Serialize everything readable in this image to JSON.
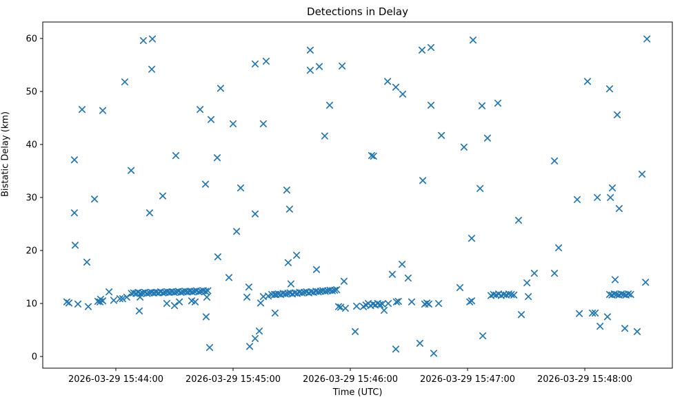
{
  "chart_data": {
    "type": "scatter",
    "title": "Detections in Delay",
    "xlabel": "Time (UTC)",
    "ylabel": "Bistatic Delay (km)",
    "marker": "x",
    "marker_color": "#1f77b4",
    "grid": false,
    "x_unit": "seconds after 2026-03-29 15:43:00 UTC",
    "xlim": [
      22.6,
      344.8
    ],
    "ylim": [
      -2.2,
      63.1
    ],
    "x_ticks": [
      60,
      120,
      180,
      240,
      300
    ],
    "x_tick_labels": [
      "2026-03-29 15:44:00",
      "2026-03-29 15:45:00",
      "2026-03-29 15:46:00",
      "2026-03-29 15:47:00",
      "2026-03-29 15:48:00"
    ],
    "y_ticks": [
      0,
      10,
      20,
      30,
      40,
      50,
      60
    ],
    "y_tick_labels": [
      "0",
      "10",
      "20",
      "30",
      "40",
      "50",
      "60"
    ],
    "points": [
      [
        34.9,
        10.3
      ],
      [
        36.0,
        10.1
      ],
      [
        38.8,
        37.1
      ],
      [
        38.8,
        27.1
      ],
      [
        39.2,
        21.0
      ],
      [
        40.6,
        9.9
      ],
      [
        42.7,
        46.6
      ],
      [
        45.2,
        17.8
      ],
      [
        45.9,
        9.4
      ],
      [
        49.1,
        29.7
      ],
      [
        50.8,
        10.4
      ],
      [
        51.9,
        10.3
      ],
      [
        52.2,
        10.8
      ],
      [
        53.3,
        10.5
      ],
      [
        53.3,
        46.4
      ],
      [
        56.5,
        12.2
      ],
      [
        58.9,
        10.6
      ],
      [
        62.1,
        10.9
      ],
      [
        63.5,
        10.9
      ],
      [
        64.6,
        51.8
      ],
      [
        65.6,
        11.2
      ],
      [
        67.8,
        35.1
      ],
      [
        68.0,
        11.9
      ],
      [
        69.1,
        12.0
      ],
      [
        70.3,
        11.9
      ],
      [
        71.4,
        12.1
      ],
      [
        72.6,
        11.9
      ],
      [
        73.7,
        12.0
      ],
      [
        74.9,
        12.1
      ],
      [
        76.0,
        11.9
      ],
      [
        77.2,
        12.0
      ],
      [
        78.3,
        12.1
      ],
      [
        79.5,
        12.0
      ],
      [
        80.6,
        12.1
      ],
      [
        81.8,
        12.0
      ],
      [
        82.9,
        12.2
      ],
      [
        84.1,
        12.0
      ],
      [
        85.2,
        12.1
      ],
      [
        86.4,
        12.2
      ],
      [
        87.5,
        12.1
      ],
      [
        88.7,
        12.2
      ],
      [
        89.8,
        12.1
      ],
      [
        91.0,
        12.2
      ],
      [
        92.1,
        12.3
      ],
      [
        93.3,
        12.1
      ],
      [
        94.4,
        12.2
      ],
      [
        95.6,
        12.3
      ],
      [
        96.7,
        12.2
      ],
      [
        97.9,
        12.3
      ],
      [
        99.0,
        12.2
      ],
      [
        100.2,
        12.3
      ],
      [
        101.3,
        12.4
      ],
      [
        102.5,
        12.2
      ],
      [
        103.6,
        12.3
      ],
      [
        104.8,
        12.4
      ],
      [
        105.9,
        12.3
      ],
      [
        107.1,
        12.4
      ],
      [
        72.0,
        8.6
      ],
      [
        72.4,
        11.2
      ],
      [
        74.1,
        59.6
      ],
      [
        77.3,
        27.1
      ],
      [
        78.4,
        54.2
      ],
      [
        78.7,
        59.9
      ],
      [
        84.0,
        30.3
      ],
      [
        86.1,
        10.0
      ],
      [
        90.0,
        9.6
      ],
      [
        90.7,
        37.9
      ],
      [
        92.5,
        10.3
      ],
      [
        98.8,
        10.5
      ],
      [
        100.6,
        10.3
      ],
      [
        103.1,
        46.6
      ],
      [
        105.9,
        32.5
      ],
      [
        106.2,
        7.5
      ],
      [
        106.6,
        11.2
      ],
      [
        108.0,
        1.7
      ],
      [
        108.7,
        44.7
      ],
      [
        111.9,
        37.5
      ],
      [
        112.2,
        18.8
      ],
      [
        113.6,
        50.6
      ],
      [
        117.9,
        14.9
      ],
      [
        120.0,
        43.9
      ],
      [
        121.8,
        23.6
      ],
      [
        123.9,
        31.8
      ],
      [
        127.1,
        11.2
      ],
      [
        128.1,
        13.1
      ],
      [
        128.5,
        1.9
      ],
      [
        131.3,
        3.4
      ],
      [
        131.3,
        26.9
      ],
      [
        131.3,
        55.2
      ],
      [
        133.4,
        4.8
      ],
      [
        134.1,
        10.1
      ],
      [
        135.5,
        11.3
      ],
      [
        135.5,
        43.9
      ],
      [
        136.9,
        55.7
      ],
      [
        138.0,
        11.4
      ],
      [
        139.8,
        11.7
      ],
      [
        141.2,
        11.7
      ],
      [
        141.5,
        8.2
      ],
      [
        142.0,
        11.7
      ],
      [
        143.2,
        11.8
      ],
      [
        144.4,
        11.7
      ],
      [
        145.6,
        11.9
      ],
      [
        146.8,
        11.8
      ],
      [
        148.0,
        11.9
      ],
      [
        149.2,
        12.0
      ],
      [
        150.4,
        11.8
      ],
      [
        151.6,
        12.0
      ],
      [
        152.8,
        11.9
      ],
      [
        154.0,
        12.1
      ],
      [
        155.2,
        12.0
      ],
      [
        156.4,
        12.1
      ],
      [
        157.6,
        12.2
      ],
      [
        158.8,
        12.0
      ],
      [
        160.0,
        12.2
      ],
      [
        161.2,
        12.1
      ],
      [
        162.4,
        12.3
      ],
      [
        163.6,
        12.2
      ],
      [
        164.8,
        12.3
      ],
      [
        166.0,
        12.4
      ],
      [
        167.2,
        12.3
      ],
      [
        168.4,
        12.4
      ],
      [
        169.6,
        12.5
      ],
      [
        170.8,
        12.4
      ],
      [
        172.0,
        12.5
      ],
      [
        173.0,
        12.6
      ],
      [
        147.5,
        31.4
      ],
      [
        148.2,
        17.7
      ],
      [
        148.9,
        27.8
      ],
      [
        149.6,
        13.7
      ],
      [
        152.5,
        19.1
      ],
      [
        159.5,
        57.8
      ],
      [
        159.5,
        54.0
      ],
      [
        162.7,
        16.4
      ],
      [
        164.1,
        54.7
      ],
      [
        166.9,
        41.6
      ],
      [
        169.4,
        47.4
      ],
      [
        174.0,
        9.4
      ],
      [
        175.1,
        9.3
      ],
      [
        175.8,
        54.8
      ],
      [
        176.8,
        14.2
      ],
      [
        177.5,
        9.1
      ],
      [
        182.5,
        4.7
      ],
      [
        183.2,
        9.5
      ],
      [
        186.7,
        9.4
      ],
      [
        188.0,
        9.7
      ],
      [
        189.2,
        10.0
      ],
      [
        190.4,
        9.6
      ],
      [
        191.6,
        9.9
      ],
      [
        192.8,
        9.7
      ],
      [
        194.0,
        10.0
      ],
      [
        195.2,
        9.8
      ],
      [
        196.4,
        9.9
      ],
      [
        190.9,
        37.9
      ],
      [
        191.9,
        37.8
      ],
      [
        197.3,
        8.7
      ],
      [
        199.1,
        51.9
      ],
      [
        199.4,
        10.0
      ],
      [
        201.5,
        15.5
      ],
      [
        203.3,
        50.8
      ],
      [
        203.3,
        1.4
      ],
      [
        203.6,
        10.3
      ],
      [
        204.6,
        10.4
      ],
      [
        206.5,
        17.4
      ],
      [
        206.8,
        49.5
      ],
      [
        209.6,
        14.8
      ],
      [
        211.4,
        10.3
      ],
      [
        215.6,
        2.5
      ],
      [
        216.7,
        57.8
      ],
      [
        217.1,
        33.2
      ],
      [
        218.1,
        9.9
      ],
      [
        219.2,
        10.1
      ],
      [
        220.2,
        9.9
      ],
      [
        221.3,
        58.3
      ],
      [
        221.3,
        47.4
      ],
      [
        222.7,
        0.6
      ],
      [
        225.2,
        10.0
      ],
      [
        226.6,
        41.7
      ],
      [
        236.1,
        13.0
      ],
      [
        238.2,
        39.5
      ],
      [
        241.1,
        10.3
      ],
      [
        242.1,
        10.5
      ],
      [
        242.1,
        22.3
      ],
      [
        242.8,
        59.7
      ],
      [
        246.4,
        31.7
      ],
      [
        247.4,
        47.3
      ],
      [
        247.8,
        3.9
      ],
      [
        250.2,
        41.2
      ],
      [
        252.0,
        11.5
      ],
      [
        253.3,
        11.7
      ],
      [
        254.6,
        11.6
      ],
      [
        255.9,
        11.8
      ],
      [
        257.2,
        11.5
      ],
      [
        258.5,
        11.7
      ],
      [
        259.8,
        11.6
      ],
      [
        261.1,
        11.8
      ],
      [
        262.4,
        11.7
      ],
      [
        263.7,
        11.6
      ],
      [
        255.5,
        47.8
      ],
      [
        266.1,
        25.7
      ],
      [
        267.5,
        7.9
      ],
      [
        270.4,
        13.9
      ],
      [
        271.1,
        11.3
      ],
      [
        274.2,
        15.7
      ],
      [
        284.5,
        36.9
      ],
      [
        284.5,
        15.7
      ],
      [
        286.6,
        20.5
      ],
      [
        296.1,
        29.6
      ],
      [
        297.2,
        8.1
      ],
      [
        301.4,
        51.9
      ],
      [
        303.9,
        8.2
      ],
      [
        305.3,
        8.2
      ],
      [
        306.4,
        30.0
      ],
      [
        307.8,
        5.7
      ],
      [
        311.6,
        7.5
      ],
      [
        312.7,
        11.7
      ],
      [
        313.9,
        11.6
      ],
      [
        315.1,
        11.8
      ],
      [
        316.3,
        11.7
      ],
      [
        317.5,
        11.6
      ],
      [
        318.7,
        11.8
      ],
      [
        319.9,
        11.7
      ],
      [
        321.1,
        11.6
      ],
      [
        322.3,
        11.8
      ],
      [
        323.5,
        11.7
      ],
      [
        312.7,
        50.5
      ],
      [
        313.1,
        30.0
      ],
      [
        314.1,
        31.8
      ],
      [
        315.5,
        14.5
      ],
      [
        316.6,
        45.6
      ],
      [
        317.6,
        27.9
      ],
      [
        320.5,
        5.3
      ],
      [
        326.8,
        4.7
      ],
      [
        329.3,
        34.4
      ],
      [
        331.1,
        14.0
      ],
      [
        331.8,
        59.9
      ]
    ]
  }
}
